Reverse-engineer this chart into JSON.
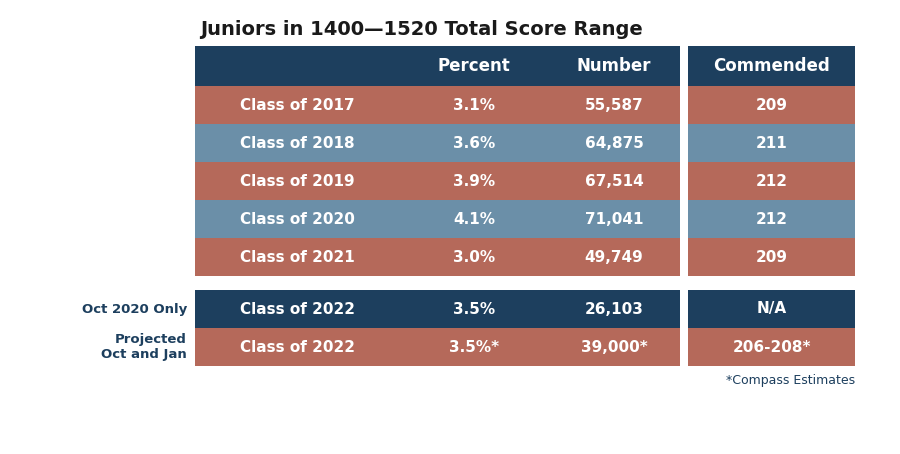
{
  "title": "Juniors in 1400—1520 Total Score Range",
  "header_bg": "#1d3f5e",
  "row_colors_main": [
    "#b5695a",
    "#6b8fa8",
    "#b5695a",
    "#6b8fa8",
    "#b5695a"
  ],
  "commended_col_colors": [
    "#b5695a",
    "#6b8fa8",
    "#b5695a",
    "#6b8fa8",
    "#b5695a"
  ],
  "rows": [
    [
      "Class of 2017",
      "3.1%",
      "55,587",
      "209"
    ],
    [
      "Class of 2018",
      "3.6%",
      "64,875",
      "211"
    ],
    [
      "Class of 2019",
      "3.9%",
      "67,514",
      "212"
    ],
    [
      "Class of 2020",
      "4.1%",
      "71,041",
      "212"
    ],
    [
      "Class of 2021",
      "3.0%",
      "49,749",
      "209"
    ]
  ],
  "extra_rows": [
    [
      "Class of 2022",
      "3.5%",
      "26,103",
      "N/A"
    ],
    [
      "Class of 2022",
      "3.5%*",
      "39,000*",
      "206-208*"
    ]
  ],
  "extra_row_labels": [
    "Oct 2020 Only",
    "Projected\nOct and Jan"
  ],
  "extra_row_bg": [
    "#1d3f5e",
    "#b5695a"
  ],
  "footnote": "*Compass Estimates",
  "col_headers": [
    "",
    "Percent",
    "Number",
    "Commended"
  ],
  "label_color": "#1d3f5e",
  "title_color": "#1a1a1a"
}
